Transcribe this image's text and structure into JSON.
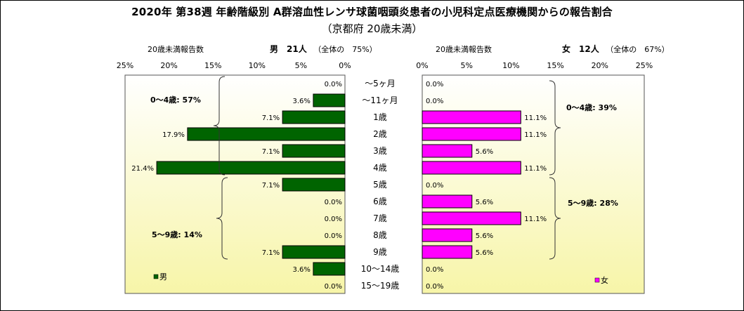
{
  "title": "2020年 第38週 年齢階級別 A群溶血性レンサ球菌咽頭炎患者の小児科定点医療機関からの報告割合",
  "subtitle": "（京都府 20歳未満）",
  "colors": {
    "male": "#006400",
    "female": "#ff00ff",
    "plot_top": "#ffffff",
    "plot_bottom": "#f7f5a8"
  },
  "male_header": {
    "caption": "20歳未満報告数",
    "count": "男　21人",
    "share": "（全体の　75%）"
  },
  "female_header": {
    "caption": "20歳未満報告数",
    "count": "女　12人",
    "share": "（全体の　67%）"
  },
  "chart_data": [
    {
      "type": "bar",
      "orientation": "horizontal",
      "direction": "right-to-left",
      "legend": "男",
      "legend_position": "bottom-left",
      "xlim": [
        0,
        25
      ],
      "x_ticks": [
        "25%",
        "20%",
        "15%",
        "10%",
        "5%",
        "0%"
      ],
      "categories": [
        "～5ヶ月",
        "～11ヶ月",
        "1歳",
        "2歳",
        "3歳",
        "4歳",
        "5歳",
        "6歳",
        "7歳",
        "8歳",
        "9歳",
        "10～14歳",
        "15～19歳"
      ],
      "values": [
        0.0,
        3.6,
        7.1,
        17.9,
        7.1,
        21.4,
        7.1,
        0.0,
        0.0,
        0.0,
        7.1,
        3.6,
        0.0
      ],
      "data_labels": [
        "0.0%",
        "3.6%",
        "7.1%",
        "17.9%",
        "7.1%",
        "21.4%",
        "7.1%",
        "0.0%",
        "0.0%",
        "0.0%",
        "7.1%",
        "3.6%",
        "0.0%"
      ],
      "annotations": [
        "0～4歳: 57%",
        "5～9歳: 14%"
      ]
    },
    {
      "type": "bar",
      "orientation": "horizontal",
      "legend": "女",
      "legend_position": "bottom-right",
      "xlim": [
        0,
        25
      ],
      "x_ticks": [
        "0%",
        "5%",
        "10%",
        "15%",
        "20%",
        "25%"
      ],
      "categories": [
        "～5ヶ月",
        "～11ヶ月",
        "1歳",
        "2歳",
        "3歳",
        "4歳",
        "5歳",
        "6歳",
        "7歳",
        "8歳",
        "9歳",
        "10～14歳",
        "15～19歳"
      ],
      "values": [
        0.0,
        0.0,
        11.1,
        11.1,
        5.6,
        11.1,
        0.0,
        5.6,
        11.1,
        5.6,
        5.6,
        0.0,
        0.0
      ],
      "data_labels": [
        "0.0%",
        "0.0%",
        "11.1%",
        "11.1%",
        "5.6%",
        "11.1%",
        "0.0%",
        "5.6%",
        "11.1%",
        "5.6%",
        "5.6%",
        "0.0%",
        "0.0%"
      ],
      "annotations": [
        "0～4歳: 39%",
        "5～9歳: 28%"
      ]
    }
  ]
}
